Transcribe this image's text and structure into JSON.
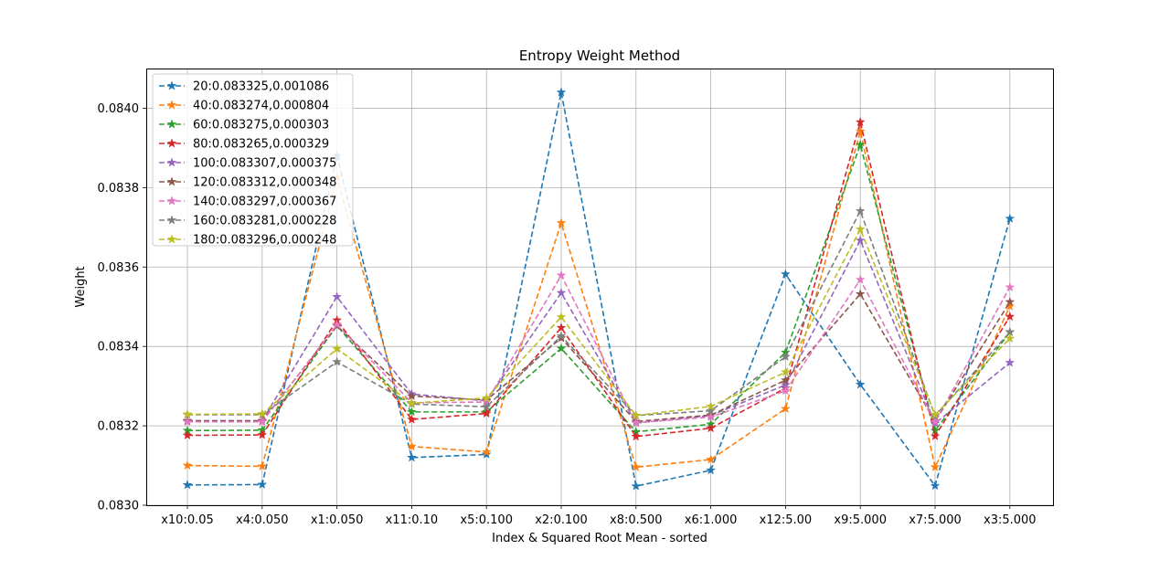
{
  "chart_data": {
    "type": "line",
    "title": "Entropy Weight Method",
    "xlabel": "Index & Squared Root Mean - sorted",
    "ylabel": "Weight",
    "ylim": [
      0.083,
      0.0841
    ],
    "yticks": [
      "0.0830",
      "0.0832",
      "0.0834",
      "0.0836",
      "0.0838",
      "0.0840"
    ],
    "grid": true,
    "legend_position": "top-left",
    "marker": "star",
    "line_style": "dashed",
    "categories": [
      "x10:0.05",
      "x4:0.050",
      "x1:0.050",
      "x11:0.10",
      "x5:0.100",
      "x2:0.100",
      "x8:0.500",
      "x6:1.000",
      "x12:5.00",
      "x9:5.000",
      "x7:5.000",
      "x3:5.000"
    ],
    "series": [
      {
        "name": "20:0.083325,0.001086",
        "color": "#1f77b4",
        "values": [
          0.083051,
          0.083052,
          0.08388,
          0.08312,
          0.083128,
          0.08404,
          0.083048,
          0.083088,
          0.083582,
          0.083304,
          0.083049,
          0.083722
        ]
      },
      {
        "name": "40:0.083274,0.000804",
        "color": "#ff7f0e",
        "values": [
          0.0831,
          0.083098,
          0.083825,
          0.083148,
          0.083134,
          0.083711,
          0.083096,
          0.083115,
          0.083243,
          0.083942,
          0.083096,
          0.083501
        ]
      },
      {
        "name": "60:0.083275,0.000303",
        "color": "#2ca02c",
        "values": [
          0.083188,
          0.083189,
          0.083452,
          0.083235,
          0.083235,
          0.083395,
          0.083185,
          0.083204,
          0.083385,
          0.083908,
          0.083188,
          0.083436
        ]
      },
      {
        "name": "80:0.083265,0.000329",
        "color": "#d62728",
        "values": [
          0.083176,
          0.083177,
          0.083466,
          0.083216,
          0.083231,
          0.083447,
          0.083173,
          0.083194,
          0.083295,
          0.083965,
          0.083174,
          0.083475
        ]
      },
      {
        "name": "100:0.083307,0.000375",
        "color": "#9467bd",
        "values": [
          0.083213,
          0.083213,
          0.083525,
          0.08328,
          0.083263,
          0.083535,
          0.083207,
          0.083226,
          0.083303,
          0.083667,
          0.083206,
          0.083359
        ]
      },
      {
        "name": "120:0.083312,0.000348",
        "color": "#8c564b",
        "values": [
          0.083212,
          0.083212,
          0.083452,
          0.083275,
          0.083265,
          0.083421,
          0.083211,
          0.083227,
          0.083315,
          0.083532,
          0.083211,
          0.083512
        ]
      },
      {
        "name": "140:0.083297,0.000367",
        "color": "#e377c2",
        "values": [
          0.08321,
          0.08321,
          0.083455,
          0.083258,
          0.08326,
          0.083579,
          0.083208,
          0.083222,
          0.083288,
          0.083568,
          0.08321,
          0.083549
        ]
      },
      {
        "name": "160:0.083281,0.000228",
        "color": "#7f7f7f",
        "values": [
          0.083228,
          0.083228,
          0.083361,
          0.083255,
          0.083248,
          0.083426,
          0.083226,
          0.083238,
          0.083374,
          0.083741,
          0.083225,
          0.083436
        ]
      },
      {
        "name": "180:0.083296,0.000248",
        "color": "#bcbd22",
        "values": [
          0.083229,
          0.08323,
          0.083394,
          0.083257,
          0.08327,
          0.083474,
          0.083226,
          0.083249,
          0.083335,
          0.083695,
          0.083228,
          0.08342
        ]
      }
    ]
  }
}
